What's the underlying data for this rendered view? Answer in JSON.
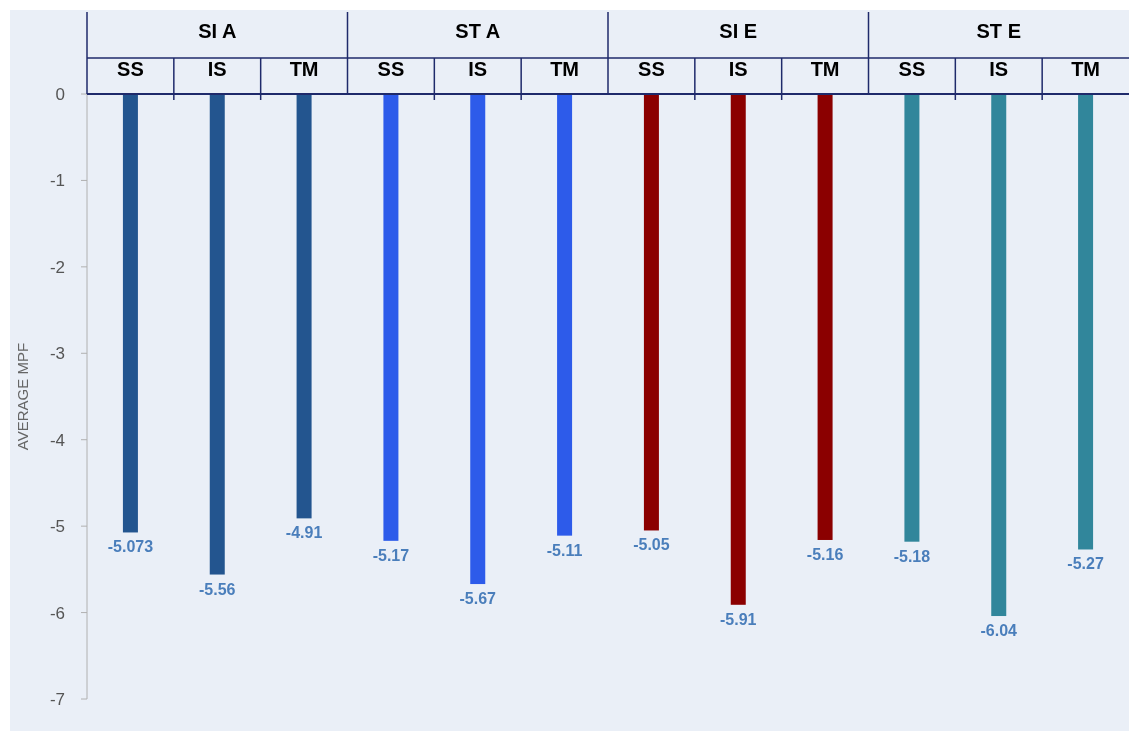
{
  "chart_data": {
    "type": "bar",
    "ylabel": "AVERAGE MPF",
    "categories": [
      "SS",
      "IS",
      "TM",
      "SS",
      "IS",
      "TM",
      "SS",
      "IS",
      "TM",
      "SS",
      "IS",
      "TM"
    ],
    "series": [
      {
        "name": "SI A",
        "color": "#23558f",
        "values": [
          -5.073,
          -5.56,
          -4.91,
          null,
          null,
          null,
          null,
          null,
          null,
          null,
          null,
          null
        ]
      },
      {
        "name": "ST A",
        "color": "#2d5bea",
        "values": [
          null,
          null,
          null,
          -5.17,
          -5.67,
          -5.11,
          null,
          null,
          null,
          null,
          null,
          null
        ]
      },
      {
        "name": "SI E",
        "color": "#8b0000",
        "values": [
          null,
          null,
          null,
          null,
          null,
          null,
          -5.05,
          -5.91,
          -5.16,
          null,
          null,
          null
        ]
      },
      {
        "name": "ST E",
        "color": "#31869b",
        "values": [
          null,
          null,
          null,
          null,
          null,
          null,
          null,
          null,
          null,
          -5.18,
          -6.04,
          -5.27
        ]
      }
    ],
    "ylim": [
      -7,
      0
    ],
    "yticks": [
      0,
      -1,
      -2,
      -3,
      -4,
      -5,
      -6,
      -7
    ],
    "data_labels": true
  }
}
